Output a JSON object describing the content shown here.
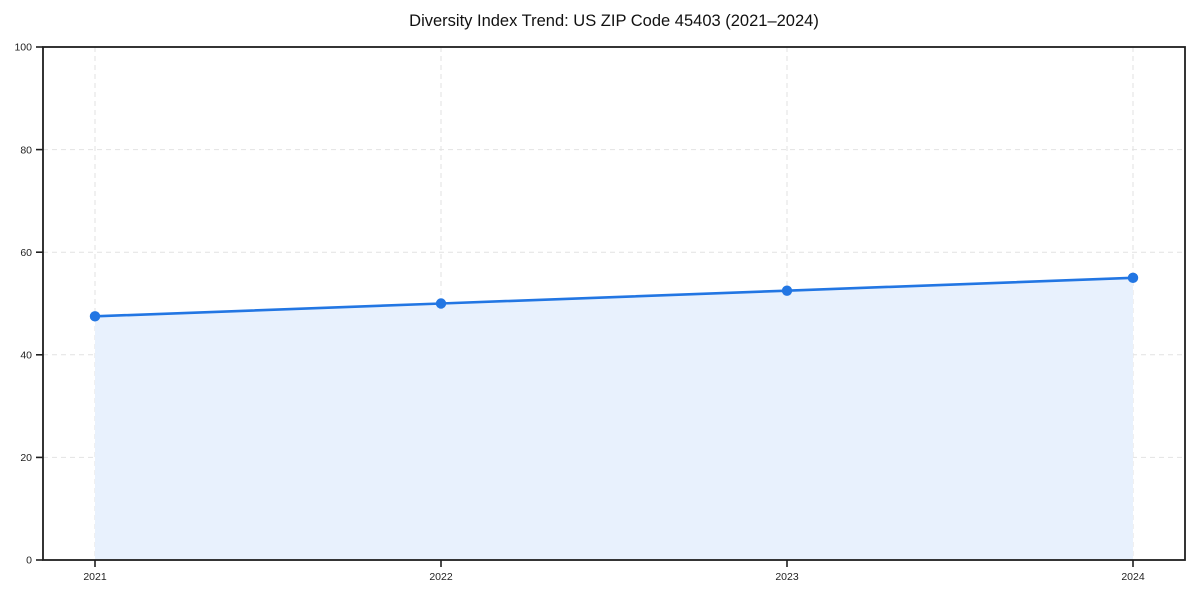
{
  "chart_data": {
    "type": "area",
    "title": "Diversity Index Trend: US ZIP Code 45403 (2021–2024)",
    "categories": [
      "2021",
      "2022",
      "2023",
      "2024"
    ],
    "values": [
      47.5,
      50.0,
      52.5,
      55.0
    ],
    "xlabel": "",
    "ylabel": "",
    "ylim": [
      0,
      100
    ],
    "yticks": [
      0,
      20,
      40,
      60,
      80,
      100
    ],
    "grid": "dashed, both axes",
    "legend": "none",
    "colors": {
      "line": "#2276e3",
      "marker": "#2276e3",
      "area_fill": "#e8f1fd",
      "grid": "#e2e2e2",
      "spine": "#1f1f1f",
      "tick_label": "#1f1f1f",
      "title": "#111111",
      "background": "#ffffff"
    }
  }
}
